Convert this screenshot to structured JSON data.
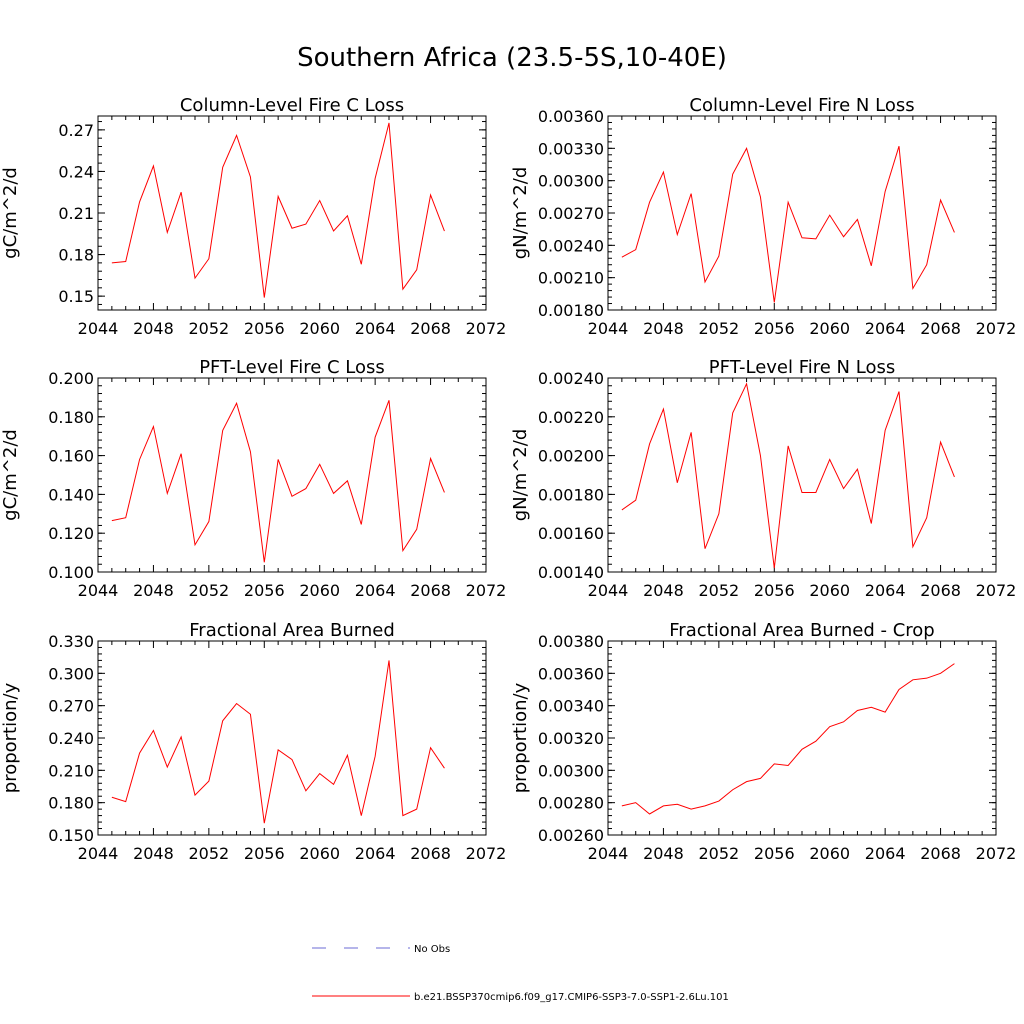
{
  "figure": {
    "title": "Southern Africa (23.5-5S,10-40E)"
  },
  "legend": {
    "items": [
      {
        "label": "No Obs",
        "color": "#6b6bd6",
        "dash": "dashed"
      },
      {
        "label": "b.e21.BSSP370cmip6.f09_g17.CMIP6-SSP3-7.0-SSP1-2.6Lu.101",
        "color": "#ff0000",
        "dash": "solid"
      }
    ]
  },
  "chart_data": [
    {
      "type": "line",
      "title": "Column-Level Fire C Loss",
      "ylabel": "gC/m^2/d",
      "xlim": [
        2044,
        2072
      ],
      "ylim": [
        0.14,
        0.28
      ],
      "xticks": [
        "2044",
        "2048",
        "2052",
        "2056",
        "2060",
        "2064",
        "2068",
        "2072"
      ],
      "yticks": [
        "0.15",
        "0.18",
        "0.21",
        "0.24",
        "0.27"
      ],
      "x": [
        2045,
        2046,
        2047,
        2048,
        2049,
        2050,
        2051,
        2052,
        2053,
        2054,
        2055,
        2056,
        2057,
        2058,
        2059,
        2060,
        2061,
        2062,
        2063,
        2064,
        2065,
        2066,
        2067,
        2068,
        2069
      ],
      "series": [
        {
          "color": "#ff0000",
          "values": [
            0.174,
            0.175,
            0.218,
            0.244,
            0.196,
            0.225,
            0.163,
            0.177,
            0.243,
            0.266,
            0.236,
            0.149,
            0.222,
            0.199,
            0.202,
            0.219,
            0.197,
            0.208,
            0.173,
            0.235,
            0.275,
            0.155,
            0.169,
            0.223,
            0.197
          ]
        }
      ]
    },
    {
      "type": "line",
      "title": "Column-Level Fire N Loss",
      "ylabel": "gN/m^2/d",
      "xlim": [
        2044,
        2072
      ],
      "ylim": [
        0.0018,
        0.0036
      ],
      "xticks": [
        "2044",
        "2048",
        "2052",
        "2056",
        "2060",
        "2064",
        "2068",
        "2072"
      ],
      "yticks": [
        "0.00180",
        "0.00210",
        "0.00240",
        "0.00270",
        "0.00300",
        "0.00330",
        "0.00360"
      ],
      "x": [
        2045,
        2046,
        2047,
        2048,
        2049,
        2050,
        2051,
        2052,
        2053,
        2054,
        2055,
        2056,
        2057,
        2058,
        2059,
        2060,
        2061,
        2062,
        2063,
        2064,
        2065,
        2066,
        2067,
        2068,
        2069
      ],
      "series": [
        {
          "color": "#ff0000",
          "values": [
            0.00229,
            0.00236,
            0.0028,
            0.00308,
            0.0025,
            0.00288,
            0.00206,
            0.0023,
            0.00306,
            0.0033,
            0.00285,
            0.00187,
            0.0028,
            0.00247,
            0.00246,
            0.00268,
            0.00248,
            0.00264,
            0.00221,
            0.0029,
            0.00332,
            0.002,
            0.00222,
            0.00282,
            0.00252
          ]
        }
      ]
    },
    {
      "type": "line",
      "title": "PFT-Level Fire C Loss",
      "ylabel": "gC/m^2/d",
      "xlim": [
        2044,
        2072
      ],
      "ylim": [
        0.1,
        0.2
      ],
      "xticks": [
        "2044",
        "2048",
        "2052",
        "2056",
        "2060",
        "2064",
        "2068",
        "2072"
      ],
      "yticks": [
        "0.100",
        "0.120",
        "0.140",
        "0.160",
        "0.180",
        "0.200"
      ],
      "x": [
        2045,
        2046,
        2047,
        2048,
        2049,
        2050,
        2051,
        2052,
        2053,
        2054,
        2055,
        2056,
        2057,
        2058,
        2059,
        2060,
        2061,
        2062,
        2063,
        2064,
        2065,
        2066,
        2067,
        2068,
        2069
      ],
      "series": [
        {
          "color": "#ff0000",
          "values": [
            0.1265,
            0.128,
            0.158,
            0.175,
            0.1405,
            0.161,
            0.114,
            0.126,
            0.173,
            0.187,
            0.162,
            0.105,
            0.158,
            0.139,
            0.143,
            0.1555,
            0.1405,
            0.147,
            0.1245,
            0.1695,
            0.1885,
            0.111,
            0.122,
            0.1585,
            0.141
          ]
        }
      ]
    },
    {
      "type": "line",
      "title": "PFT-Level Fire N Loss",
      "ylabel": "gN/m^2/d",
      "xlim": [
        2044,
        2072
      ],
      "ylim": [
        0.0014,
        0.0024
      ],
      "xticks": [
        "2044",
        "2048",
        "2052",
        "2056",
        "2060",
        "2064",
        "2068",
        "2072"
      ],
      "yticks": [
        "0.00140",
        "0.00160",
        "0.00180",
        "0.00200",
        "0.00220",
        "0.00240"
      ],
      "x": [
        2045,
        2046,
        2047,
        2048,
        2049,
        2050,
        2051,
        2052,
        2053,
        2054,
        2055,
        2056,
        2057,
        2058,
        2059,
        2060,
        2061,
        2062,
        2063,
        2064,
        2065,
        2066,
        2067,
        2068,
        2069
      ],
      "series": [
        {
          "color": "#ff0000",
          "values": [
            0.00172,
            0.00177,
            0.00206,
            0.00224,
            0.00186,
            0.00212,
            0.00152,
            0.0017,
            0.00222,
            0.00237,
            0.002,
            0.00142,
            0.00205,
            0.00181,
            0.00181,
            0.00198,
            0.00183,
            0.00193,
            0.00165,
            0.00213,
            0.00233,
            0.00153,
            0.00168,
            0.00207,
            0.00189
          ]
        }
      ]
    },
    {
      "type": "line",
      "title": "Fractional Area Burned",
      "ylabel": "proportion/y",
      "xlim": [
        2044,
        2072
      ],
      "ylim": [
        0.15,
        0.33
      ],
      "xticks": [
        "2044",
        "2048",
        "2052",
        "2056",
        "2060",
        "2064",
        "2068",
        "2072"
      ],
      "yticks": [
        "0.150",
        "0.180",
        "0.210",
        "0.240",
        "0.270",
        "0.300",
        "0.330"
      ],
      "x": [
        2045,
        2046,
        2047,
        2048,
        2049,
        2050,
        2051,
        2052,
        2053,
        2054,
        2055,
        2056,
        2057,
        2058,
        2059,
        2060,
        2061,
        2062,
        2063,
        2064,
        2065,
        2066,
        2067,
        2068,
        2069
      ],
      "series": [
        {
          "color": "#ff0000",
          "values": [
            0.185,
            0.181,
            0.226,
            0.247,
            0.213,
            0.241,
            0.187,
            0.2,
            0.256,
            0.272,
            0.262,
            0.161,
            0.229,
            0.22,
            0.191,
            0.207,
            0.197,
            0.224,
            0.168,
            0.223,
            0.312,
            0.168,
            0.174,
            0.231,
            0.212
          ]
        }
      ]
    },
    {
      "type": "line",
      "title": "Fractional Area Burned - Crop",
      "ylabel": "proportion/y",
      "xlim": [
        2044,
        2072
      ],
      "ylim": [
        0.0026,
        0.0038
      ],
      "xticks": [
        "2044",
        "2048",
        "2052",
        "2056",
        "2060",
        "2064",
        "2068",
        "2072"
      ],
      "yticks": [
        "0.00260",
        "0.00280",
        "0.00300",
        "0.00320",
        "0.00340",
        "0.00360",
        "0.00380"
      ],
      "x": [
        2045,
        2046,
        2047,
        2048,
        2049,
        2050,
        2051,
        2052,
        2053,
        2054,
        2055,
        2056,
        2057,
        2058,
        2059,
        2060,
        2061,
        2062,
        2063,
        2064,
        2065,
        2066,
        2067,
        2068,
        2069
      ],
      "series": [
        {
          "color": "#ff0000",
          "values": [
            0.00278,
            0.0028,
            0.00273,
            0.00278,
            0.00279,
            0.00276,
            0.00278,
            0.00281,
            0.00288,
            0.00293,
            0.00295,
            0.00304,
            0.00303,
            0.00313,
            0.00318,
            0.00327,
            0.0033,
            0.00337,
            0.00339,
            0.00336,
            0.0035,
            0.00356,
            0.00357,
            0.0036,
            0.00366
          ]
        }
      ]
    }
  ]
}
